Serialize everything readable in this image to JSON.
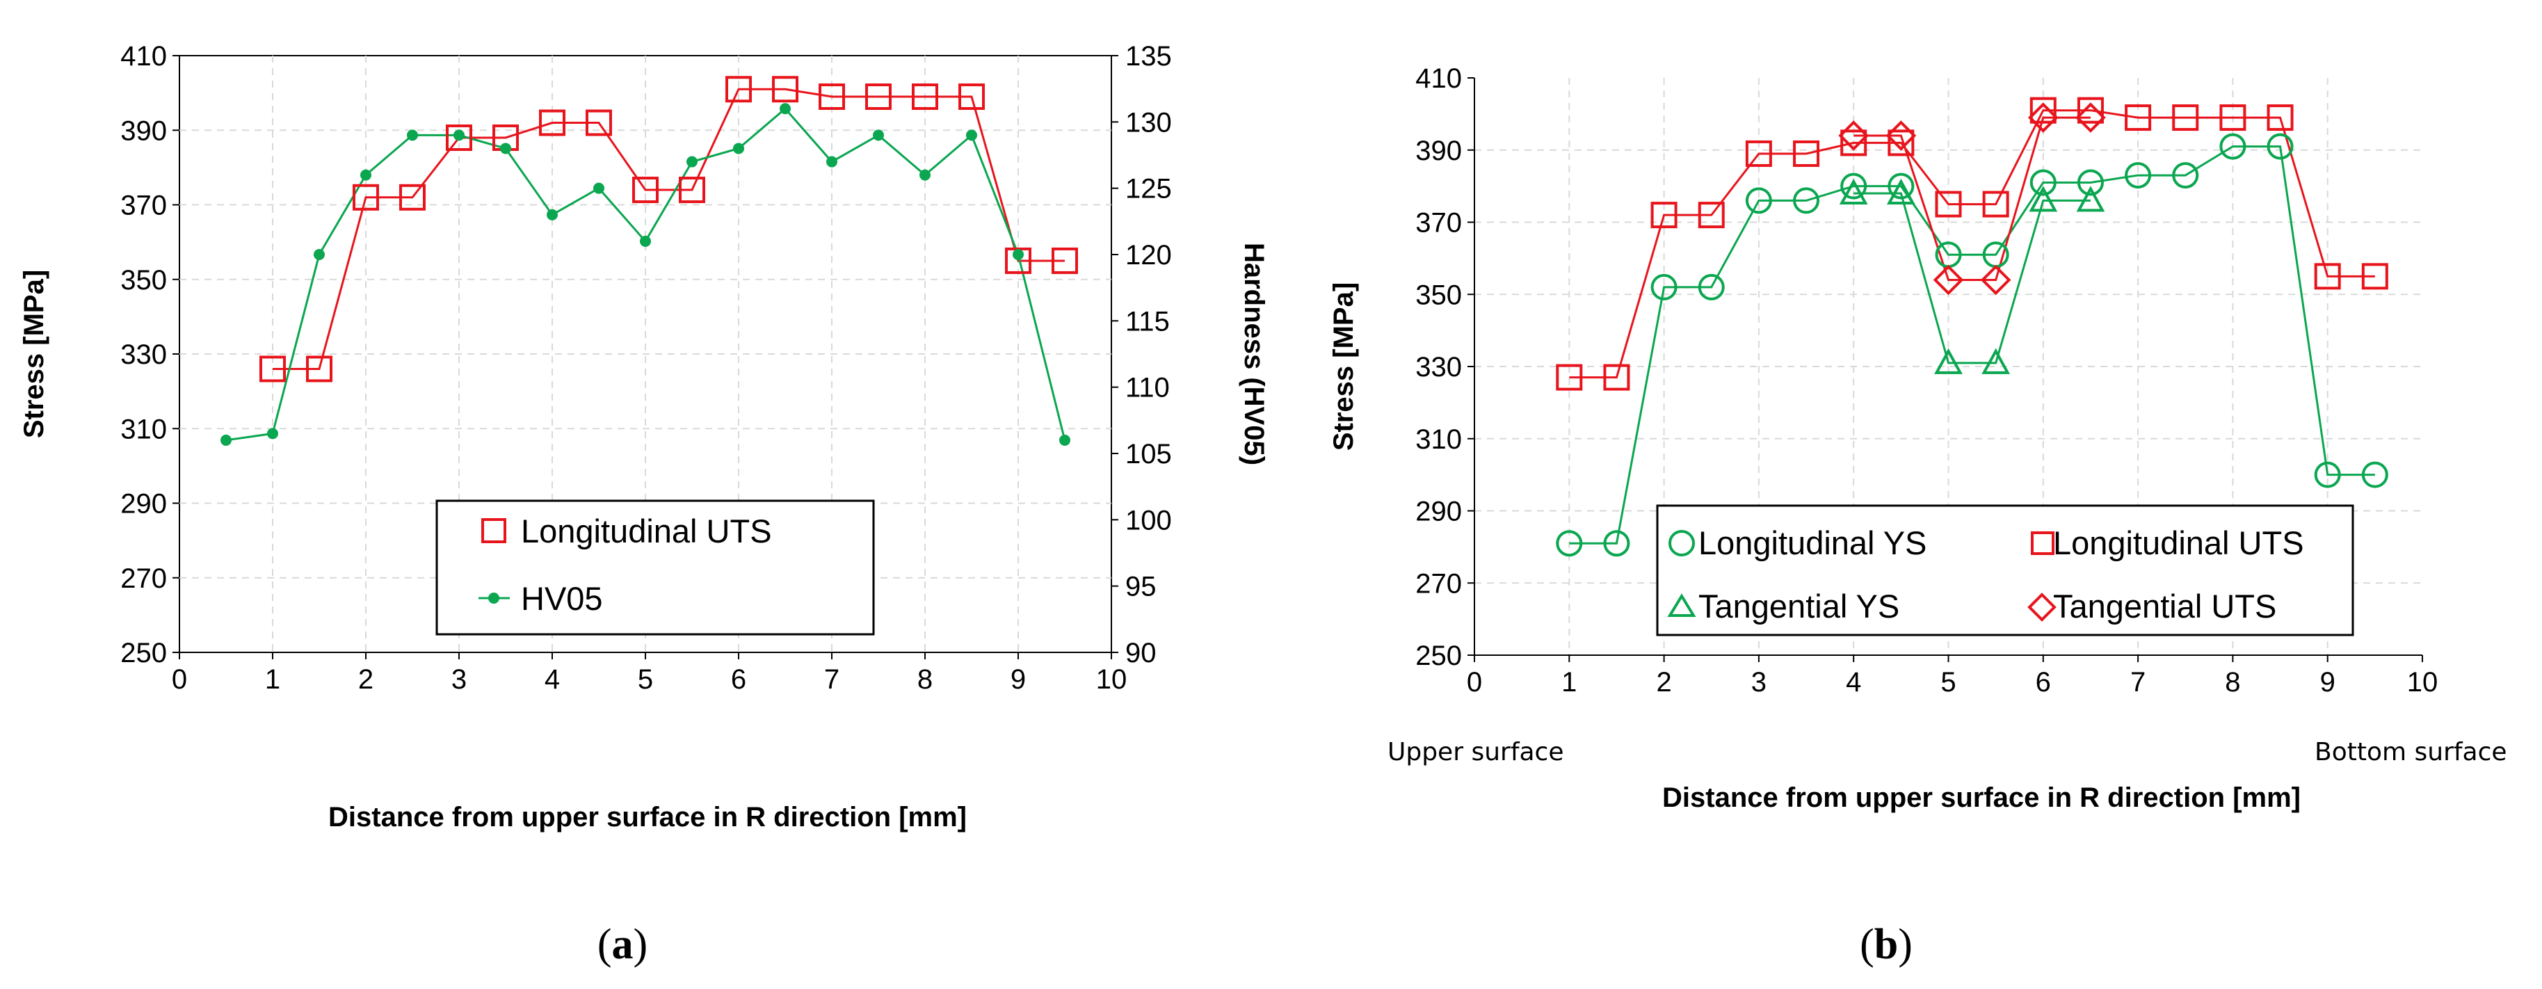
{
  "chart_data": [
    {
      "type": "line",
      "panel_label": "a",
      "xlabel": "Distance from upper surface in R direction [mm]",
      "ylabel": "Stress [MPa]",
      "y2label": "Hardness (HV05)",
      "xlim": [
        0,
        10
      ],
      "ylim": [
        250,
        410
      ],
      "y2lim": [
        90,
        135
      ],
      "x_ticks": [
        "0",
        "1",
        "2",
        "3",
        "4",
        "5",
        "6",
        "7",
        "8",
        "9",
        "10"
      ],
      "y_ticks": [
        "250",
        "270",
        "290",
        "310",
        "330",
        "350",
        "370",
        "390",
        "410"
      ],
      "y2_ticks": [
        "90",
        "95",
        "100",
        "105",
        "110",
        "115",
        "120",
        "125",
        "130",
        "135"
      ],
      "grid": true,
      "legend_position": "bottom-center",
      "series": [
        {
          "name": "Longitudinal UTS",
          "axis": "left",
          "marker": "square",
          "color": "#e8141c",
          "x": [
            1,
            1.5,
            2,
            2.5,
            3,
            3.5,
            4,
            4.5,
            5,
            5.5,
            6,
            6.5,
            7,
            7.5,
            8,
            8.5,
            9,
            9.5
          ],
          "values": [
            326,
            326,
            372,
            372,
            388,
            388,
            392,
            392,
            374,
            374,
            401,
            401,
            399,
            399,
            399,
            399,
            355,
            355
          ]
        },
        {
          "name": "HV05",
          "axis": "right",
          "marker": "dot",
          "color": "#0aa650",
          "x": [
            0.5,
            1,
            1.5,
            2,
            2.5,
            3,
            3.5,
            4,
            4.5,
            5,
            5.5,
            6,
            6.5,
            7,
            7.5,
            8,
            8.5,
            9,
            9.5
          ],
          "values": [
            106,
            106.5,
            120,
            126,
            129,
            129,
            128,
            123,
            125,
            121,
            127,
            128,
            131,
            127,
            129,
            126,
            129,
            120,
            106
          ]
        }
      ]
    },
    {
      "type": "line",
      "panel_label": "b",
      "xlabel": "Distance from upper surface in R direction [mm]",
      "ylabel": "Stress [MPa]",
      "xlim": [
        0,
        10
      ],
      "ylim": [
        250,
        410
      ],
      "x_ticks": [
        "0",
        "1",
        "2",
        "3",
        "4",
        "5",
        "6",
        "7",
        "8",
        "9",
        "10"
      ],
      "y_ticks": [
        "250",
        "270",
        "290",
        "310",
        "330",
        "350",
        "370",
        "390",
        "410"
      ],
      "grid": true,
      "legend_position": "bottom-center",
      "annotations": [
        "Upper surface",
        "Bottom surface"
      ],
      "series": [
        {
          "name": "Longitudinal YS",
          "marker": "circle",
          "color": "#0aa650",
          "x": [
            1,
            1.5,
            2,
            2.5,
            3,
            3.5,
            4,
            4.5,
            5,
            5.5,
            6,
            6.5,
            7,
            7.5,
            8,
            8.5,
            9,
            9.5
          ],
          "values": [
            281,
            281,
            352,
            352,
            376,
            376,
            380,
            380,
            361,
            361,
            381,
            381,
            383,
            383,
            391,
            391,
            300,
            300
          ]
        },
        {
          "name": "Longitudinal UTS",
          "marker": "square",
          "color": "#e8141c",
          "x": [
            1,
            1.5,
            2,
            2.5,
            3,
            3.5,
            4,
            4.5,
            5,
            5.5,
            6,
            6.5,
            7,
            7.5,
            8,
            8.5,
            9,
            9.5
          ],
          "values": [
            327,
            327,
            372,
            372,
            389,
            389,
            392,
            392,
            375,
            375,
            401,
            401,
            399,
            399,
            399,
            399,
            355,
            355
          ]
        },
        {
          "name": "Tangential YS",
          "marker": "triangle",
          "color": "#0aa650",
          "x": [
            4,
            4.5,
            5,
            5.5,
            6,
            6.5
          ],
          "values": [
            378,
            378,
            331,
            331,
            376,
            376
          ]
        },
        {
          "name": "Tangential UTS",
          "marker": "diamond",
          "color": "#e8141c",
          "x": [
            4,
            4.5,
            5,
            5.5,
            6,
            6.5
          ],
          "values": [
            394,
            394,
            354,
            354,
            399,
            399
          ]
        }
      ]
    }
  ]
}
